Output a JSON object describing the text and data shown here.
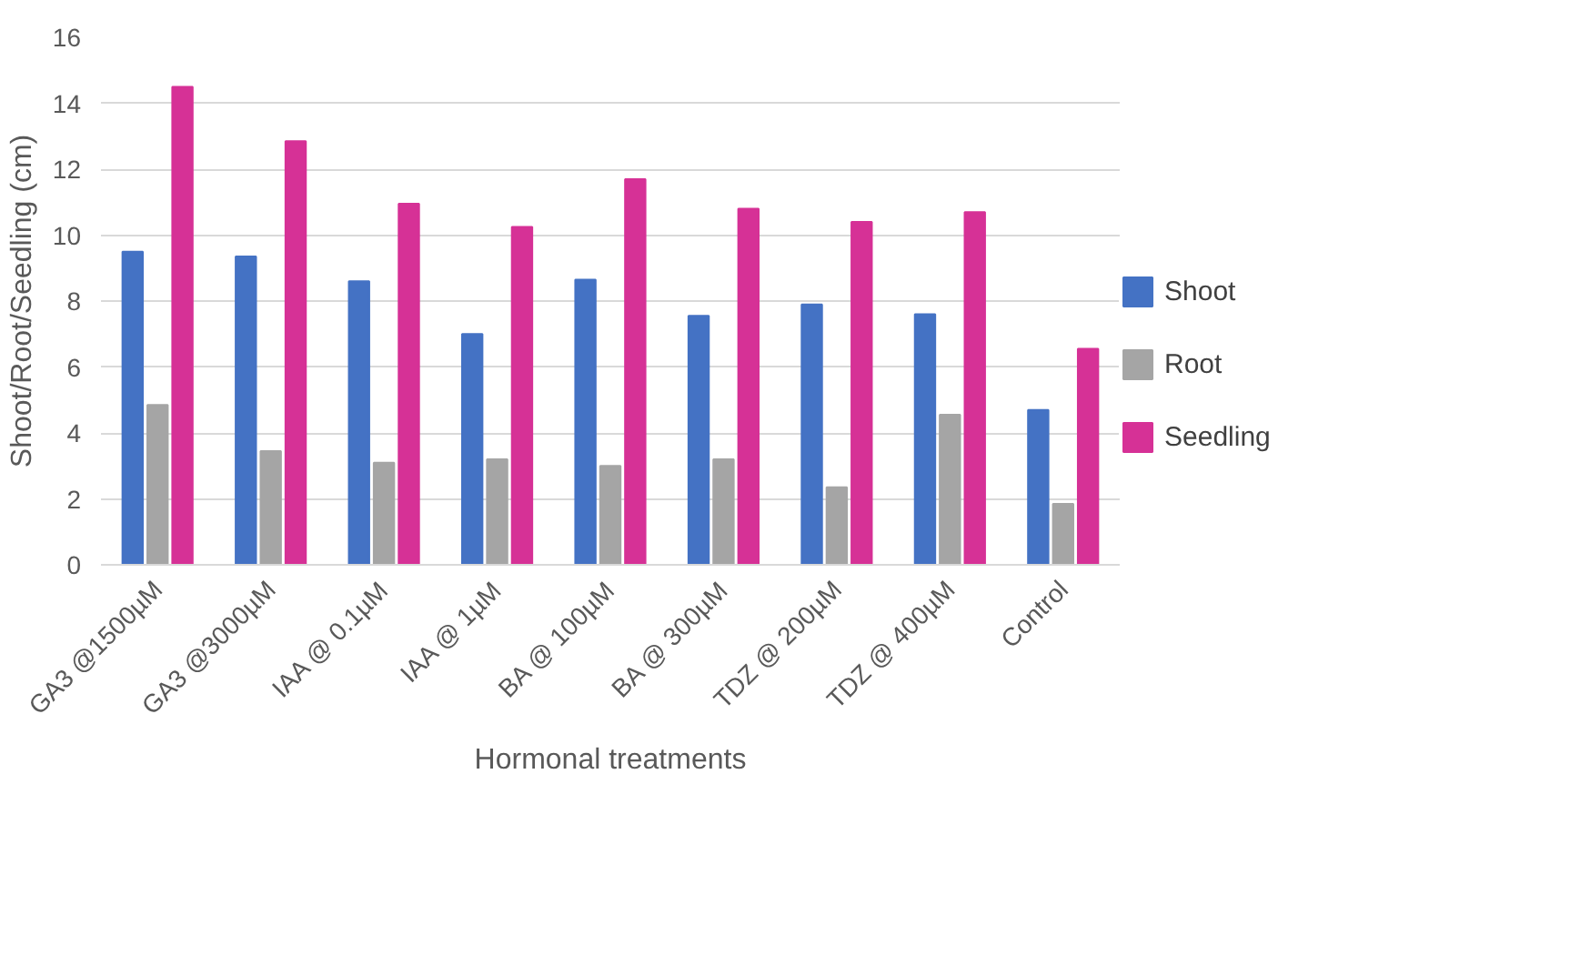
{
  "chart_data": {
    "type": "bar",
    "xlabel": "Hormonal treatments",
    "ylabel": "Shoot/Root/Seedling (cm)",
    "categories": [
      "GA3 @1500µM",
      "GA3 @3000µM",
      "IAA @ 0.1µM",
      "IAA @ 1µM",
      "BA @ 100µM",
      "BA @ 300µM",
      "TDZ @ 200µM",
      "TDZ @ 400µM",
      "Control"
    ],
    "series": [
      {
        "name": "Shoot",
        "color": "#4472c4",
        "values": [
          9.5,
          9.35,
          8.6,
          7.0,
          8.65,
          7.55,
          7.9,
          7.6,
          4.7
        ]
      },
      {
        "name": "Root",
        "color": "#a5a5a5",
        "values": [
          4.85,
          3.45,
          3.1,
          3.2,
          3.0,
          3.2,
          2.35,
          4.55,
          1.85
        ]
      },
      {
        "name": "Seedling",
        "color": "#d63196",
        "values": [
          14.5,
          12.85,
          10.95,
          10.25,
          11.7,
          10.8,
          10.4,
          10.7,
          6.55
        ]
      }
    ],
    "ylim": [
      0,
      16
    ],
    "yticks": [
      0,
      2,
      4,
      6,
      8,
      10,
      12,
      14,
      16
    ],
    "grid": "y",
    "legend": "right"
  }
}
